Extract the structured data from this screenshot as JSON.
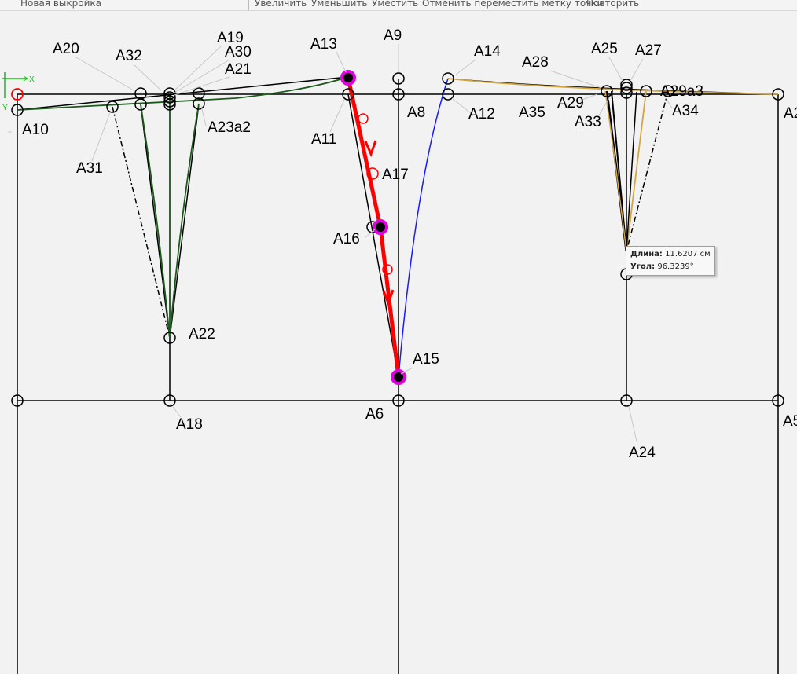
{
  "toolbar": {
    "new_pattern": "Новая выкройка",
    "zoom_in": "Увеличить",
    "zoom_out": "Уменьшить",
    "fit": "Уместить",
    "undo_move_label": "Отменить переместить метку точки",
    "redo": "Повторить"
  },
  "axes": {
    "x": "X",
    "y": "Y"
  },
  "points": {
    "A5": "A5",
    "A6": "A6",
    "A8": "A8",
    "A9": "A9",
    "A10": "A10",
    "A11": "A11",
    "A12": "A12",
    "A13": "A13",
    "A14": "A14",
    "A15": "A15",
    "A16": "A16",
    "A17": "A17",
    "A18": "A18",
    "A19": "A19",
    "A20": "A20",
    "A21": "A21",
    "A22": "A22",
    "A23a2": "A23a2",
    "A24": "A24",
    "A25": "A25",
    "A27": "A27",
    "A28": "A28",
    "A29": "A29",
    "A29a3": "A29a3",
    "A30": "A30",
    "A31": "A31",
    "A32": "A32",
    "A33": "A33",
    "A34": "A34",
    "A35": "A35",
    "A2": "A2"
  },
  "tooltip": {
    "length_label": "Длина:",
    "length_value": "11.6207 см",
    "angle_label": "Угол:",
    "angle_value": "96.3239°"
  },
  "colors": {
    "background": "#f2f2f2",
    "construction": "#000000",
    "front_dart_curve": "#1c5a1c",
    "back_curve": "#d4a640",
    "side_curve": "#1a1aff",
    "active_segment": "#ff0000",
    "selected_point": "#e000e0",
    "origin": "#ff0000",
    "axis_marker": "#00cc00"
  }
}
